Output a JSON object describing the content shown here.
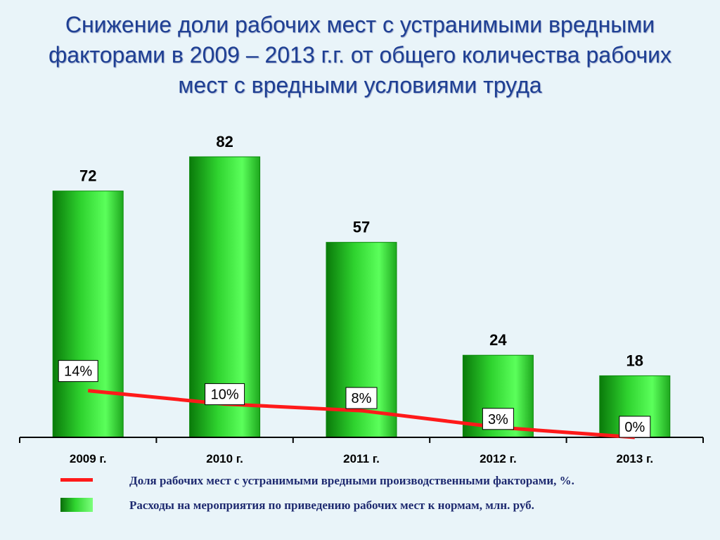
{
  "title_lines": [
    "Снижение доли рабочих мест с устранимыми вредными",
    "факторами в 2009 – 2013 г.г. от общего количества рабочих",
    "мест с вредными условиями труда"
  ],
  "colors": {
    "title": "#1e3f93",
    "bar_dark": "#0a7a0a",
    "bar_light": "#5bff5b",
    "line": "#ff1a1a",
    "legend_text": "#1e2a70"
  },
  "chart_data": {
    "type": "bar",
    "categories": [
      "2009 г.",
      "2010 г.",
      "2011 г.",
      "2012 г.",
      "2013 г."
    ],
    "series": [
      {
        "name": "Расходы на мероприятия по приведению рабочих мест к нормам, млн. руб.",
        "type": "bar",
        "values": [
          72,
          82,
          57,
          24,
          18
        ],
        "labels": [
          "72",
          "82",
          "57",
          "24",
          "18"
        ]
      },
      {
        "name": "Доля рабочих мест с устранимыми вредными производственными факторами, %.",
        "type": "line",
        "values": [
          14,
          10,
          8,
          3,
          0
        ],
        "labels": [
          "14%",
          "10%",
          "8%",
          "3%",
          "0%"
        ]
      }
    ],
    "ylim_bar": [
      0,
      90
    ],
    "ylim_line": [
      0,
      50
    ],
    "grid": false,
    "legend_position": "bottom"
  }
}
